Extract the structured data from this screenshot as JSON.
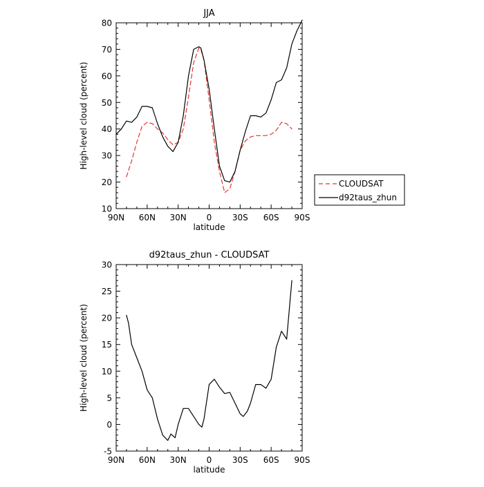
{
  "chart_data": [
    {
      "type": "line",
      "title": "JJA",
      "xlabel": "latitude",
      "ylabel": "High-level cloud (percent)",
      "xlim": [
        -90,
        90
      ],
      "ylim": [
        10,
        80
      ],
      "x_ticks": [
        -90,
        -60,
        -30,
        0,
        30,
        60,
        90
      ],
      "x_tick_labels": [
        "90N",
        "60N",
        "30N",
        "0",
        "30S",
        "60S",
        "90S"
      ],
      "y_ticks": [
        10,
        20,
        30,
        40,
        50,
        60,
        70,
        80
      ],
      "y_tick_labels": [
        "10",
        "20",
        "30",
        "40",
        "50",
        "60",
        "70",
        "80"
      ],
      "legend": {
        "placement": "right, outside plot"
      },
      "series": [
        {
          "name": "CLOUDSAT",
          "color": "#e8332e",
          "dash": "dashed",
          "x": [
            -80,
            -75,
            -70,
            -65,
            -60,
            -55,
            -50,
            -45,
            -40,
            -35,
            -30,
            -25,
            -20,
            -15,
            -10,
            -8,
            -5,
            0,
            5,
            10,
            15,
            20,
            25,
            30,
            35,
            40,
            45,
            50,
            55,
            60,
            65,
            70,
            75,
            80
          ],
          "y": [
            22,
            28,
            35,
            41,
            42.5,
            42,
            40,
            38.5,
            36,
            34,
            35,
            40,
            52,
            65,
            70.5,
            70,
            66,
            51,
            35,
            24,
            16,
            17.5,
            24,
            32,
            35.5,
            37,
            37.5,
            37.5,
            37.5,
            38,
            39.5,
            42.5,
            42,
            40
          ]
        },
        {
          "name": "d92taus_zhun",
          "color": "#000000",
          "dash": "solid",
          "x": [
            -90,
            -85,
            -80,
            -75,
            -70,
            -65,
            -60,
            -55,
            -50,
            -45,
            -40,
            -35,
            -30,
            -25,
            -20,
            -15,
            -10,
            -8,
            -5,
            0,
            5,
            10,
            15,
            20,
            25,
            30,
            35,
            40,
            45,
            50,
            55,
            60,
            65,
            70,
            75,
            80,
            85,
            90
          ],
          "y": [
            38,
            40,
            43,
            42.5,
            44.5,
            48.5,
            48.5,
            48,
            42,
            37,
            33.5,
            31.5,
            35,
            45,
            60,
            70,
            71,
            70.5,
            66,
            55,
            40,
            26,
            20.5,
            20,
            24,
            32,
            39,
            45,
            45,
            44.5,
            46,
            51,
            57.5,
            58.5,
            63,
            72,
            77,
            81
          ]
        }
      ]
    },
    {
      "type": "line",
      "title": "d92taus_zhun  -  CLOUDSAT",
      "xlabel": "latitude",
      "ylabel": "High-level cloud (percent)",
      "xlim": [
        -90,
        90
      ],
      "ylim": [
        -5,
        30
      ],
      "x_ticks": [
        -90,
        -60,
        -30,
        0,
        30,
        60,
        90
      ],
      "x_tick_labels": [
        "90N",
        "60N",
        "30N",
        "0",
        "30S",
        "60S",
        "90S"
      ],
      "y_ticks": [
        -5,
        0,
        5,
        10,
        15,
        20,
        25,
        30
      ],
      "y_tick_labels": [
        "-5",
        "0",
        "5",
        "10",
        "15",
        "20",
        "25",
        "30"
      ],
      "series": [
        {
          "color": "#000000",
          "dash": "solid",
          "x": [
            -80,
            -78,
            -75,
            -70,
            -65,
            -60,
            -55,
            -50,
            -45,
            -40,
            -37,
            -33,
            -30,
            -25,
            -20,
            -15,
            -10,
            -7,
            -5,
            0,
            5,
            10,
            15,
            20,
            25,
            30,
            33,
            37,
            40,
            45,
            50,
            55,
            60,
            65,
            70,
            75,
            80
          ],
          "y": [
            20.5,
            19,
            15,
            12.5,
            10,
            6.5,
            5,
            1,
            -2,
            -3,
            -1.8,
            -2.5,
            0,
            3,
            3,
            1.5,
            0,
            -0.5,
            1,
            7.5,
            8.5,
            7,
            5.8,
            6,
            4,
            2,
            1.5,
            2.5,
            4,
            7.5,
            7.5,
            6.8,
            8.5,
            14.5,
            17.5,
            16,
            27
          ]
        }
      ]
    }
  ]
}
